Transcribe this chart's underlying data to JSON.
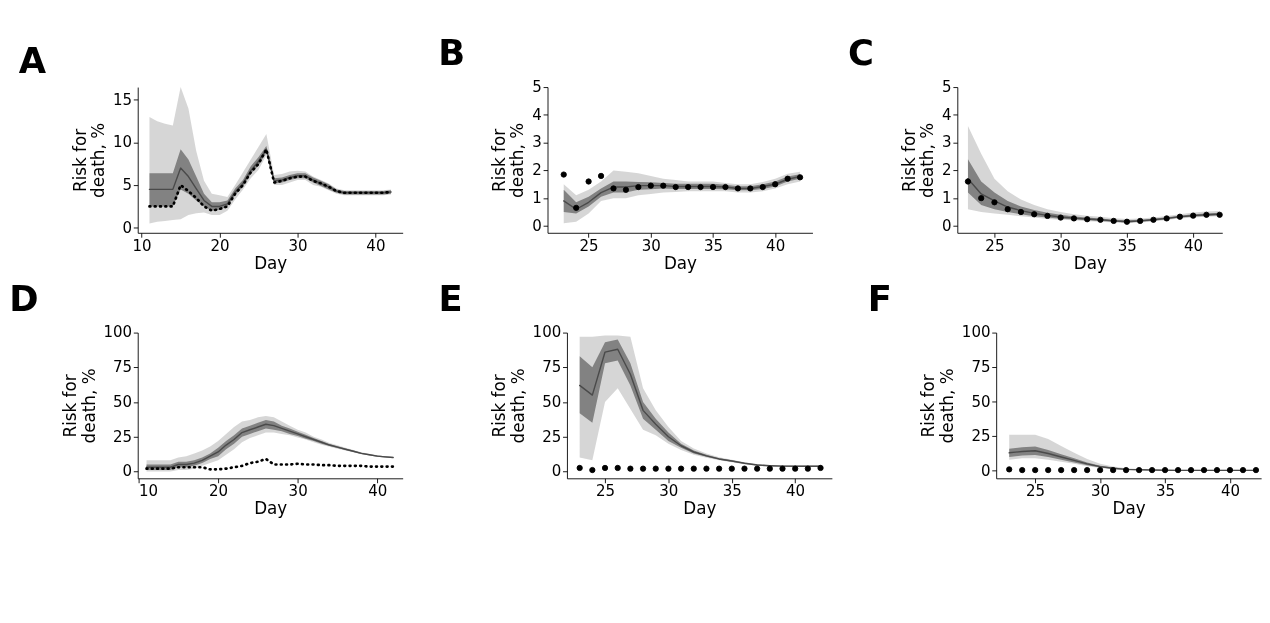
{
  "chart_data": [
    {
      "type": "line",
      "title": "A",
      "xlabel": "Day",
      "ylabel": "Risk for\ndeath, %",
      "xlim": [
        9.5,
        43.5
      ],
      "ylim": [
        -0.6,
        16.5
      ],
      "xticks": [
        10,
        20,
        30,
        40
      ],
      "yticks": [
        0,
        5,
        10,
        15
      ],
      "x": [
        11,
        12,
        13,
        14,
        15,
        16,
        17,
        18,
        19,
        20,
        21,
        22,
        23,
        24,
        25,
        26,
        27,
        28,
        29,
        30,
        31,
        32,
        33,
        34,
        35,
        36,
        37,
        38,
        39,
        40,
        41,
        42
      ],
      "series": [
        {
          "color": "#bbbbbb",
          "values": [
            null,
            null,
            null,
            null,
            null,
            null,
            null,
            null,
            null,
            null,
            null,
            null,
            null,
            null,
            null,
            null,
            null,
            null,
            null,
            null,
            null,
            null,
            null,
            null,
            null,
            null,
            null,
            null,
            null,
            null,
            null,
            null
          ],
          "lower": [
            0.5,
            0.7,
            0.8,
            0.9,
            1.0,
            1.5,
            1.7,
            1.8,
            1.5,
            1.5,
            2.0,
            3.3,
            4.5,
            5.8,
            6.8,
            8.5,
            5.0,
            5.0,
            5.3,
            5.6,
            5.6,
            5.0,
            4.8,
            4.4,
            4.0,
            3.8,
            3.8,
            3.8,
            3.8,
            3.8,
            3.8,
            3.9
          ],
          "upper": [
            13.0,
            12.5,
            12.2,
            12.0,
            16.5,
            14.0,
            9.0,
            5.5,
            4.0,
            3.8,
            3.6,
            5.0,
            6.5,
            8.0,
            9.5,
            11.0,
            6.2,
            6.3,
            6.6,
            6.7,
            6.6,
            6.0,
            5.6,
            5.2,
            4.6,
            4.4,
            4.4,
            4.4,
            4.4,
            4.4,
            4.4,
            4.5
          ]
        },
        {
          "color": "#4a4a4a",
          "values": [
            4.5,
            4.5,
            4.5,
            4.5,
            7.0,
            6.0,
            4.6,
            3.2,
            2.5,
            2.5,
            2.8,
            4.2,
            5.2,
            6.7,
            7.8,
            9.2,
            5.5,
            5.6,
            5.9,
            6.1,
            6.1,
            5.6,
            5.2,
            4.8,
            4.3,
            4.1,
            4.1,
            4.1,
            4.1,
            4.1,
            4.1,
            4.2
          ],
          "lower": [
            2.5,
            2.5,
            2.5,
            2.5,
            4.5,
            4.0,
            3.2,
            2.5,
            2.0,
            2.1,
            2.5,
            3.8,
            4.8,
            6.3,
            7.3,
            8.8,
            5.2,
            5.3,
            5.6,
            5.8,
            5.8,
            5.3,
            4.9,
            4.5,
            4.1,
            3.9,
            3.9,
            3.9,
            3.9,
            3.9,
            3.9,
            4.0
          ],
          "upper": [
            6.4,
            6.4,
            6.4,
            6.4,
            9.2,
            8.0,
            6.0,
            4.0,
            3.0,
            3.0,
            3.2,
            4.6,
            5.6,
            7.2,
            8.3,
            9.6,
            5.8,
            5.9,
            6.2,
            6.4,
            6.4,
            5.9,
            5.5,
            5.1,
            4.5,
            4.3,
            4.3,
            4.3,
            4.3,
            4.3,
            4.3,
            4.4
          ]
        },
        {
          "color": "#000000",
          "line_style": "dotted",
          "values": [
            2.5,
            2.5,
            2.5,
            2.5,
            5.0,
            4.3,
            3.5,
            2.5,
            2.0,
            2.2,
            2.5,
            4.0,
            5.0,
            6.5,
            7.5,
            9.2,
            5.3,
            5.5,
            5.8,
            6.0,
            6.0,
            5.5,
            5.2,
            4.8,
            4.3,
            4.1,
            4.1,
            4.1,
            4.1,
            4.1,
            4.1,
            4.2
          ]
        }
      ]
    },
    {
      "type": "line",
      "title": "B",
      "xlabel": "Day",
      "ylabel": "Risk for\ndeath, %",
      "xlim": [
        21.7,
        43
      ],
      "ylim": [
        -0.25,
        5
      ],
      "xticks": [
        25,
        30,
        35,
        40
      ],
      "yticks": [
        0,
        1,
        2,
        3,
        4,
        5
      ],
      "x": [
        23,
        24,
        25,
        26,
        27,
        28,
        29,
        30,
        31,
        32,
        33,
        34,
        35,
        36,
        37,
        38,
        39,
        40,
        41,
        42
      ],
      "series": [
        {
          "color": "#bbbbbb",
          "values": [
            null,
            null,
            null,
            null,
            null,
            null,
            null,
            null,
            null,
            null,
            null,
            null,
            null,
            null,
            null,
            null,
            null,
            null,
            null,
            null
          ],
          "lower": [
            0.1,
            0.15,
            0.45,
            0.9,
            1.0,
            1.0,
            1.1,
            1.15,
            1.2,
            1.22,
            1.25,
            1.25,
            1.25,
            1.25,
            1.2,
            1.2,
            1.25,
            1.35,
            1.5,
            1.6
          ],
          "upper": [
            1.5,
            1.1,
            1.3,
            1.6,
            2.0,
            1.95,
            1.9,
            1.8,
            1.7,
            1.65,
            1.6,
            1.6,
            1.6,
            1.55,
            1.5,
            1.5,
            1.58,
            1.7,
            1.88,
            1.95
          ]
        },
        {
          "color": "#4a4a4a",
          "values": [
            0.9,
            0.6,
            0.85,
            1.2,
            1.4,
            1.4,
            1.45,
            1.45,
            1.45,
            1.42,
            1.42,
            1.42,
            1.42,
            1.4,
            1.35,
            1.35,
            1.42,
            1.5,
            1.68,
            1.78
          ],
          "lower": [
            0.5,
            0.45,
            0.7,
            1.05,
            1.2,
            1.2,
            1.3,
            1.32,
            1.35,
            1.33,
            1.33,
            1.33,
            1.33,
            1.32,
            1.28,
            1.28,
            1.33,
            1.42,
            1.6,
            1.7
          ],
          "upper": [
            1.3,
            0.85,
            1.05,
            1.35,
            1.6,
            1.6,
            1.58,
            1.57,
            1.55,
            1.52,
            1.52,
            1.52,
            1.52,
            1.48,
            1.43,
            1.43,
            1.5,
            1.6,
            1.78,
            1.86
          ]
        },
        {
          "type": "scatter",
          "marker": "circle",
          "color": "#000000",
          "values": [
            1.85,
            0.65,
            1.6,
            1.8,
            1.35,
            1.3,
            1.4,
            1.45,
            1.45,
            1.4,
            1.4,
            1.4,
            1.4,
            1.4,
            1.35,
            1.35,
            1.4,
            1.5,
            1.7,
            1.75
          ]
        }
      ]
    },
    {
      "type": "line",
      "title": "C",
      "xlabel": "Day",
      "ylabel": "Risk for\ndeath, %",
      "xlim": [
        22.2,
        42.2
      ],
      "ylim": [
        -0.25,
        5
      ],
      "xticks": [
        25,
        30,
        35,
        40
      ],
      "yticks": [
        0,
        1,
        2,
        3,
        4,
        5
      ],
      "x": [
        23,
        24,
        25,
        26,
        27,
        28,
        29,
        30,
        31,
        32,
        33,
        34,
        35,
        36,
        37,
        38,
        39,
        40,
        41,
        42
      ],
      "series": [
        {
          "color": "#bbbbbb",
          "values": [
            null,
            null,
            null,
            null,
            null,
            null,
            null,
            null,
            null,
            null,
            null,
            null,
            null,
            null,
            null,
            null,
            null,
            null,
            null,
            null
          ],
          "lower": [
            0.6,
            0.5,
            0.45,
            0.4,
            0.35,
            0.3,
            0.25,
            0.22,
            0.2,
            0.17,
            0.15,
            0.12,
            0.1,
            0.12,
            0.16,
            0.21,
            0.27,
            0.3,
            0.33,
            0.35
          ],
          "upper": [
            3.6,
            2.6,
            1.7,
            1.25,
            0.95,
            0.75,
            0.6,
            0.5,
            0.42,
            0.37,
            0.33,
            0.28,
            0.25,
            0.27,
            0.3,
            0.36,
            0.42,
            0.48,
            0.52,
            0.54
          ]
        },
        {
          "color": "#4a4a4a",
          "values": [
            1.7,
            1.15,
            0.9,
            0.68,
            0.55,
            0.45,
            0.38,
            0.32,
            0.28,
            0.25,
            0.22,
            0.18,
            0.15,
            0.18,
            0.22,
            0.27,
            0.33,
            0.37,
            0.4,
            0.42
          ],
          "lower": [
            1.2,
            0.75,
            0.6,
            0.5,
            0.42,
            0.35,
            0.3,
            0.26,
            0.23,
            0.2,
            0.18,
            0.15,
            0.12,
            0.15,
            0.19,
            0.24,
            0.3,
            0.33,
            0.36,
            0.38
          ],
          "upper": [
            2.4,
            1.6,
            1.2,
            0.9,
            0.7,
            0.57,
            0.47,
            0.4,
            0.34,
            0.3,
            0.27,
            0.22,
            0.2,
            0.22,
            0.26,
            0.31,
            0.37,
            0.42,
            0.45,
            0.47
          ]
        },
        {
          "type": "scatter",
          "marker": "circle",
          "color": "#000000",
          "values": [
            1.6,
            1.0,
            0.85,
            0.6,
            0.5,
            0.42,
            0.36,
            0.3,
            0.27,
            0.24,
            0.22,
            0.18,
            0.15,
            0.18,
            0.22,
            0.27,
            0.33,
            0.37,
            0.4,
            0.4
          ]
        }
      ]
    },
    {
      "type": "line",
      "title": "D",
      "xlabel": "Day",
      "ylabel": "Risk for\ndeath, %",
      "xlim": [
        9.9,
        43.2
      ],
      "ylim": [
        -5,
        100
      ],
      "xticks": [
        10,
        20,
        30,
        40
      ],
      "yticks": [
        0,
        25,
        50,
        75,
        100
      ],
      "x": [
        11,
        12,
        13,
        14,
        15,
        16,
        17,
        18,
        19,
        20,
        21,
        22,
        23,
        24,
        25,
        26,
        27,
        28,
        29,
        30,
        31,
        32,
        33,
        34,
        35,
        36,
        37,
        38,
        39,
        40,
        41,
        42
      ],
      "series": [
        {
          "color": "#bbbbbb",
          "values": [
            null,
            null,
            null,
            null,
            null,
            null,
            null,
            null,
            null,
            null,
            null,
            null,
            null,
            null,
            null,
            null,
            null,
            null,
            null,
            null,
            null,
            null,
            null,
            null,
            null,
            null,
            null,
            null,
            null,
            null,
            null,
            null
          ],
          "lower": [
            0,
            0,
            0,
            0,
            1,
            1,
            2,
            4,
            6,
            8,
            12,
            16,
            21,
            24,
            26,
            28,
            28,
            27,
            26,
            24.5,
            23,
            21,
            19.3,
            17.8,
            16.4,
            15.1,
            13.8,
            12.4,
            11.4,
            10.5,
            10,
            9.5
          ],
          "upper": [
            8,
            8,
            8,
            8,
            10,
            11,
            13,
            15,
            18,
            22,
            27,
            32,
            36,
            37,
            39,
            40,
            39,
            36,
            33,
            30,
            28,
            25,
            23,
            20.4,
            18.8,
            17.1,
            15.4,
            13.8,
            12.7,
            11.6,
            11,
            10.5
          ]
        },
        {
          "color": "#4a4a4a",
          "values": [
            3,
            3,
            3,
            3,
            5,
            5,
            6,
            8,
            11,
            14,
            19,
            23,
            28,
            30,
            32,
            34,
            33,
            31,
            29,
            27,
            25,
            23,
            21,
            19,
            17.5,
            16,
            14.5,
            13,
            12,
            11,
            10.5,
            10
          ],
          "lower": [
            1,
            1,
            1,
            1,
            3,
            3,
            4,
            6,
            9,
            11,
            16,
            20,
            25,
            27,
            29,
            31,
            30,
            29,
            27,
            25.5,
            23.5,
            22,
            20,
            18.3,
            16.8,
            15.4,
            14,
            12.6,
            11.6,
            10.6,
            10.1,
            9.6
          ],
          "upper": [
            5,
            5,
            5,
            5,
            7,
            7,
            8,
            10,
            13,
            17,
            22,
            26,
            31,
            33,
            35,
            37,
            36,
            33,
            31,
            28.5,
            26.5,
            24,
            22,
            19.7,
            18.2,
            16.6,
            15,
            13.4,
            12.4,
            11.4,
            10.9,
            10.4
          ]
        },
        {
          "color": "#000000",
          "line_style": "dotted",
          "values": [
            2,
            2,
            2,
            2,
            3,
            3,
            3,
            3,
            1.5,
            1.5,
            2,
            3,
            4,
            6,
            7,
            9,
            5,
            5,
            5,
            5.5,
            5,
            5,
            4.5,
            4.5,
            4,
            4,
            4,
            4,
            3.5,
            3.5,
            3.5,
            3.5
          ]
        }
      ]
    },
    {
      "type": "line",
      "title": "E",
      "xlabel": "Day",
      "ylabel": "Risk for\ndeath, %",
      "xlim": [
        22,
        42.9
      ],
      "ylim": [
        -5,
        100
      ],
      "xticks": [
        25,
        30,
        35,
        40
      ],
      "yticks": [
        0,
        25,
        50,
        75,
        100
      ],
      "x": [
        23,
        24,
        25,
        26,
        27,
        28,
        29,
        30,
        31,
        32,
        33,
        34,
        35,
        36,
        37,
        38,
        39,
        40,
        41,
        42
      ],
      "series": [
        {
          "color": "#bbbbbb",
          "values": [
            null,
            null,
            null,
            null,
            null,
            null,
            null,
            null,
            null,
            null,
            null,
            null,
            null,
            null,
            null,
            null,
            null,
            null,
            null,
            null
          ],
          "lower": [
            10,
            8,
            50,
            60,
            45,
            30,
            26,
            20,
            15.5,
            12,
            9.8,
            8,
            6.6,
            5.2,
            4,
            3.5,
            3.3,
            3.2,
            3.2,
            3.2
          ],
          "upper": [
            97,
            97,
            98,
            98,
            97,
            60,
            44,
            32,
            22,
            16.5,
            13,
            10.3,
            8.5,
            6.7,
            5.3,
            4.7,
            4.4,
            4.3,
            4.3,
            4.3
          ]
        },
        {
          "color": "#4a4a4a",
          "values": [
            62,
            55,
            86,
            88,
            70,
            44,
            34,
            25,
            18.5,
            14,
            11.2,
            9,
            7.5,
            5.9,
            4.6,
            4.1,
            3.8,
            3.7,
            3.7,
            3.7
          ],
          "lower": [
            42,
            35,
            78,
            80,
            62,
            38,
            30,
            22,
            17,
            13,
            10.5,
            8.5,
            7,
            5.5,
            4.3,
            3.8,
            3.6,
            3.5,
            3.5,
            3.5
          ],
          "upper": [
            83,
            75,
            93,
            95,
            78,
            50,
            38,
            28,
            20,
            15,
            12,
            9.5,
            8,
            6.3,
            5,
            4.4,
            4.1,
            4,
            4,
            4
          ]
        },
        {
          "type": "scatter",
          "marker": "circle",
          "color": "#000000",
          "values": [
            2.5,
            1,
            2.5,
            2.5,
            2,
            2,
            2,
            2,
            2,
            2,
            2,
            2,
            2,
            2,
            2,
            2,
            2,
            2,
            2,
            2.5
          ]
        }
      ]
    },
    {
      "type": "line",
      "title": "F",
      "xlabel": "Day",
      "ylabel": "Risk for\ndeath, %",
      "xlim": [
        22,
        42.4
      ],
      "ylim": [
        -5.5,
        100
      ],
      "xticks": [
        25,
        30,
        35,
        40
      ],
      "yticks": [
        0,
        25,
        50,
        75,
        100
      ],
      "x": [
        23,
        24,
        25,
        26,
        27,
        28,
        29,
        30,
        31,
        32,
        33,
        34,
        35,
        36,
        37,
        38,
        39,
        40,
        41,
        42
      ],
      "series": [
        {
          "color": "#bbbbbb",
          "values": [
            null,
            null,
            null,
            null,
            null,
            null,
            null,
            null,
            null,
            null,
            null,
            null,
            null,
            null,
            null,
            null,
            null,
            null,
            null,
            null
          ],
          "lower": [
            8,
            9,
            9,
            8,
            6.5,
            5,
            3.3,
            2,
            1.1,
            0.6,
            0.4,
            0.25,
            0.15,
            0.1,
            0.1,
            0.1,
            0.1,
            0.1,
            0.1,
            0.1
          ],
          "upper": [
            26,
            26,
            26,
            23,
            18,
            13,
            8.5,
            5,
            3,
            1.8,
            1.2,
            0.9,
            0.8,
            0.7,
            0.7,
            0.7,
            0.7,
            0.7,
            0.7,
            0.7
          ]
        },
        {
          "color": "#4a4a4a",
          "values": [
            13,
            14,
            14.5,
            12.5,
            10,
            7.5,
            5,
            3,
            1.8,
            1,
            0.7,
            0.5,
            0.4,
            0.3,
            0.3,
            0.3,
            0.3,
            0.3,
            0.3,
            0.3
          ],
          "lower": [
            10,
            11,
            11.5,
            10,
            8,
            6,
            4,
            2.3,
            1.3,
            0.7,
            0.5,
            0.3,
            0.2,
            0.2,
            0.2,
            0.2,
            0.2,
            0.2,
            0.2,
            0.2
          ],
          "upper": [
            16,
            17,
            17.5,
            15,
            12,
            9,
            6,
            3.7,
            2.3,
            1.3,
            0.9,
            0.7,
            0.6,
            0.5,
            0.5,
            0.5,
            0.5,
            0.5,
            0.5,
            0.5
          ]
        },
        {
          "type": "scatter",
          "marker": "circle",
          "color": "#000000",
          "values": [
            1,
            0.5,
            0.5,
            0.5,
            0.5,
            0.5,
            0.5,
            0.5,
            0.5,
            0.5,
            0.5,
            0.5,
            0.5,
            0.5,
            0.5,
            0.5,
            0.5,
            0.5,
            0.5,
            0.5
          ]
        }
      ]
    }
  ]
}
